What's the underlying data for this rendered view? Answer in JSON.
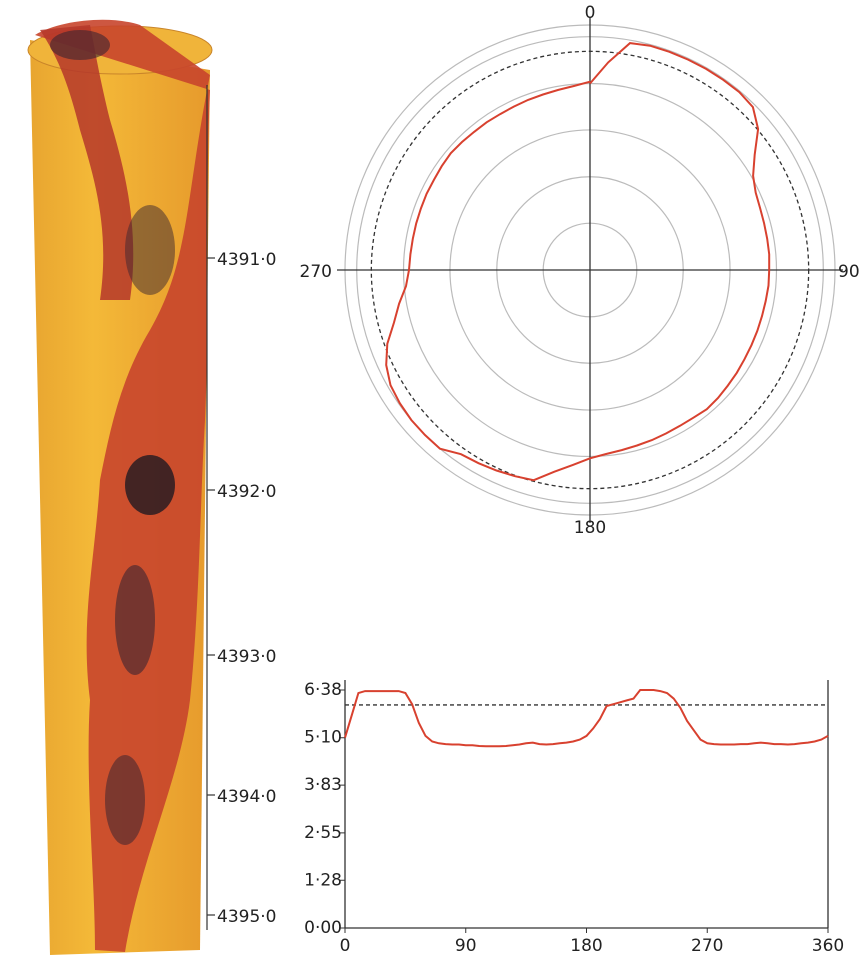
{
  "chart_data": [
    {
      "type": "cylinder",
      "yticks": [
        {
          "value": 4391,
          "label": "4391·0"
        },
        {
          "value": 4392,
          "label": "4392·0"
        },
        {
          "value": 4393,
          "label": "4393·0"
        },
        {
          "value": 4394,
          "label": "4394·0"
        },
        {
          "value": 4395,
          "label": "4395·0"
        }
      ]
    },
    {
      "type": "polar",
      "thetaticks": [
        0,
        90,
        180,
        270
      ],
      "rlim": [
        0,
        6.7
      ],
      "rticks": [
        1.28,
        2.55,
        3.83,
        5.1,
        6.38
      ],
      "reference": 5.98,
      "theta": [
        0,
        5,
        10,
        15,
        20,
        25,
        30,
        35,
        40,
        45,
        50,
        55,
        60,
        65,
        70,
        75,
        80,
        85,
        90,
        95,
        100,
        105,
        110,
        115,
        120,
        125,
        130,
        135,
        140,
        145,
        150,
        155,
        160,
        165,
        170,
        175,
        180,
        185,
        190,
        195,
        200,
        205,
        210,
        215,
        220,
        225,
        230,
        235,
        240,
        245,
        250,
        255,
        260,
        265,
        270,
        275,
        280,
        285,
        290,
        295,
        300,
        305,
        310,
        315,
        320,
        325,
        330,
        335,
        340,
        345,
        350,
        355,
        360
      ],
      "r": [
        5.1,
        5.7,
        6.3,
        6.35,
        6.35,
        6.35,
        6.35,
        6.35,
        6.35,
        6.3,
        6.0,
        5.5,
        5.15,
        5.0,
        4.95,
        4.93,
        4.92,
        4.92,
        4.9,
        4.9,
        4.88,
        4.87,
        4.87,
        4.87,
        4.88,
        4.9,
        4.92,
        4.95,
        4.97,
        4.93,
        4.92,
        4.93,
        4.95,
        4.97,
        5.0,
        5.05,
        5.15,
        5.35,
        5.6,
        5.95,
        6.0,
        6.05,
        6.1,
        6.15,
        6.38,
        6.38,
        6.38,
        6.35,
        6.3,
        6.15,
        5.9,
        5.55,
        5.3,
        5.05,
        4.95,
        4.93,
        4.92,
        4.92,
        4.92,
        4.93,
        4.93,
        4.95,
        4.97,
        4.95,
        4.93,
        4.93,
        4.92,
        4.93,
        4.95,
        4.97,
        5.0,
        5.05,
        5.15
      ],
      "color": "#d8412f"
    },
    {
      "type": "line",
      "xlim": [
        0,
        360
      ],
      "ylim": [
        0,
        6.38
      ],
      "xticks": [
        0,
        90,
        180,
        270,
        360
      ],
      "yticks": [
        {
          "value": 0,
          "label": "0·00"
        },
        {
          "value": 1.28,
          "label": "1·28"
        },
        {
          "value": 2.55,
          "label": "2·55"
        },
        {
          "value": 3.83,
          "label": "3·83"
        },
        {
          "value": 5.1,
          "label": "5·10"
        },
        {
          "value": 6.38,
          "label": "6·38"
        }
      ],
      "reference": 5.98,
      "x": [
        0,
        5,
        10,
        15,
        20,
        25,
        30,
        35,
        40,
        45,
        50,
        55,
        60,
        65,
        70,
        75,
        80,
        85,
        90,
        95,
        100,
        105,
        110,
        115,
        120,
        125,
        130,
        135,
        140,
        145,
        150,
        155,
        160,
        165,
        170,
        175,
        180,
        185,
        190,
        195,
        200,
        205,
        210,
        215,
        220,
        225,
        230,
        235,
        240,
        245,
        250,
        255,
        260,
        265,
        270,
        275,
        280,
        285,
        290,
        295,
        300,
        305,
        310,
        315,
        320,
        325,
        330,
        335,
        340,
        345,
        350,
        355,
        360
      ],
      "values": [
        5.1,
        5.7,
        6.3,
        6.35,
        6.35,
        6.35,
        6.35,
        6.35,
        6.35,
        6.3,
        6.0,
        5.5,
        5.15,
        5.0,
        4.95,
        4.93,
        4.92,
        4.92,
        4.9,
        4.9,
        4.88,
        4.87,
        4.87,
        4.87,
        4.88,
        4.9,
        4.92,
        4.95,
        4.97,
        4.93,
        4.92,
        4.93,
        4.95,
        4.97,
        5.0,
        5.05,
        5.15,
        5.35,
        5.6,
        5.95,
        6.0,
        6.05,
        6.1,
        6.15,
        6.38,
        6.38,
        6.38,
        6.35,
        6.3,
        6.15,
        5.9,
        5.55,
        5.3,
        5.05,
        4.95,
        4.93,
        4.92,
        4.92,
        4.92,
        4.93,
        4.93,
        4.95,
        4.97,
        4.95,
        4.93,
        4.93,
        4.92,
        4.93,
        4.95,
        4.97,
        5.0,
        5.05,
        5.15
      ],
      "color": "#d8412f"
    }
  ]
}
